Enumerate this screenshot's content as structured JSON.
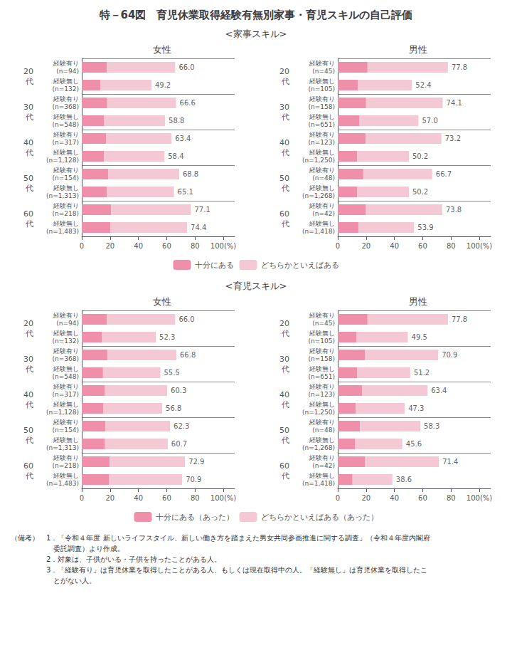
{
  "title": "特－64図　育児休業取得経験有無別家事・育児スキルの自己評価",
  "notes": [
    "（備考）　1．「令和４年度 新しいライフスタイル、新しい働き方を踏まえた男女共同参画推進に関する調査」（令和４年度内閣府",
    "　　　　　　委託調査）より作成。",
    "　　　　　2．対象は、子供がいる・子供を持ったことがある人。",
    "　　　　　3．「経験有り」は育児休業を取得したことがある人、もしくは現在取得中の人。「経験無し」は育児休業を取得したこ",
    "　　　　　　とがない人。"
  ],
  "chart_data": [
    {
      "type": "bar",
      "section": "<家事スキル>",
      "title": "女性",
      "orientation": "horizontal",
      "stacked": true,
      "grid": false,
      "legend": "bottom",
      "data_labels": true,
      "group_labels": [
        "20\n代",
        "30\n代",
        "40\n代",
        "50\n代",
        "60\n代"
      ],
      "categories": [
        "経験有り\n(n=94)",
        "経験無し\n(n=132)",
        "経験有り\n(n=368)",
        "経験無し\n(n=548)",
        "経験有り\n(n=317)",
        "経験無し\n(n=1,128)",
        "経験有り\n(n=154)",
        "経験無し\n(n=1,313)",
        "経験有り\n(n=218)",
        "経験無し\n(n=1,483)"
      ],
      "series": [
        {
          "name": "十分にある",
          "color": "#ef8faa",
          "values": [
            17.82,
            13.284,
            17.982,
            15.876,
            17.118,
            15.768,
            18.576,
            17.577,
            20.817,
            20.088
          ]
        },
        {
          "name": "どちらかといえばある",
          "color": "#f5c8d5",
          "values": [
            48.18,
            35.916,
            48.618,
            42.924,
            46.282,
            42.632,
            50.224,
            47.523,
            56.283,
            54.312
          ]
        }
      ],
      "totals": [
        66.0,
        49.2,
        66.6,
        58.8,
        63.4,
        58.4,
        68.8,
        65.1,
        77.1,
        74.4
      ],
      "total_labels": [
        "66.0",
        "49.2",
        "66.6",
        "58.8",
        "63.4",
        "58.4",
        "68.8",
        "65.1",
        "77.1",
        "74.4"
      ],
      "xlim": [
        0,
        108
      ],
      "xticks": [
        0,
        20,
        40,
        60,
        80,
        {
          "value": 100,
          "label": "100(%)"
        }
      ]
    },
    {
      "type": "bar",
      "section": "<家事スキル>",
      "title": "男性",
      "orientation": "horizontal",
      "stacked": true,
      "grid": false,
      "legend": "bottom",
      "data_labels": true,
      "group_labels": [
        "20\n代",
        "30\n代",
        "40\n代",
        "50\n代",
        "60\n代"
      ],
      "categories": [
        "経験有り\n(n=45)",
        "経験無し\n(n=105)",
        "経験有り\n(n=158)",
        "経験無し\n(n=651)",
        "経験有り\n(n=123)",
        "経験無し\n(n=1,250)",
        "経験有り\n(n=48)",
        "経験無し\n(n=1,268)",
        "経験有り\n(n=42)",
        "経験無し\n(n=1,418)"
      ],
      "series": [
        {
          "name": "十分にある",
          "color": "#ef8faa",
          "values": [
            21.006,
            14.148,
            20.007,
            15.39,
            19.764,
            13.554,
            18.009,
            13.554,
            19.926,
            14.553
          ]
        },
        {
          "name": "どちらかといえばある",
          "color": "#f5c8d5",
          "values": [
            56.794,
            38.252,
            54.093,
            41.61,
            53.436,
            36.646,
            48.691,
            36.646,
            53.874,
            39.347
          ]
        }
      ],
      "totals": [
        77.8,
        52.4,
        74.1,
        57.0,
        73.2,
        50.2,
        66.7,
        50.2,
        73.8,
        53.9
      ],
      "total_labels": [
        "77.8",
        "52.4",
        "74.1",
        "57.0",
        "73.2",
        "50.2",
        "66.7",
        "50.2",
        "73.8",
        "53.9"
      ],
      "xlim": [
        0,
        108
      ],
      "xticks": [
        0,
        20,
        40,
        60,
        80,
        {
          "value": 100,
          "label": "100(%)"
        }
      ]
    },
    {
      "type": "bar",
      "section": "<育児スキル>",
      "title": "女性",
      "orientation": "horizontal",
      "stacked": true,
      "grid": false,
      "legend": "bottom",
      "data_labels": true,
      "group_labels": [
        "20\n代",
        "30\n代",
        "40\n代",
        "50\n代",
        "60\n代"
      ],
      "categories": [
        "経験有り\n(n=94)",
        "経験無し\n(n=132)",
        "経験有り\n(n=368)",
        "経験無し\n(n=548)",
        "経験有り\n(n=317)",
        "経験無し\n(n=1,128)",
        "経験有り\n(n=154)",
        "経験無し\n(n=1,313)",
        "経験有り\n(n=218)",
        "経験無し\n(n=1,483)"
      ],
      "series": [
        {
          "name": "十分にある（あった）",
          "color": "#ef8faa",
          "values": [
            17.82,
            14.121,
            18.036,
            14.985,
            16.281,
            15.336,
            16.821,
            16.389,
            19.683,
            19.143
          ]
        },
        {
          "name": "どちらかといえばある（あった）",
          "color": "#f5c8d5",
          "values": [
            48.18,
            38.179,
            48.764,
            40.515,
            44.019,
            41.464,
            45.479,
            44.311,
            53.217,
            51.757
          ]
        }
      ],
      "totals": [
        66.0,
        52.3,
        66.8,
        55.5,
        60.3,
        56.8,
        62.3,
        60.7,
        72.9,
        70.9
      ],
      "total_labels": [
        "66.0",
        "52.3",
        "66.8",
        "55.5",
        "60.3",
        "56.8",
        "62.3",
        "60.7",
        "72.9",
        "70.9"
      ],
      "xlim": [
        0,
        108
      ],
      "xticks": [
        0,
        20,
        40,
        60,
        80,
        {
          "value": 100,
          "label": "100(%)"
        }
      ]
    },
    {
      "type": "bar",
      "section": "<育児スキル>",
      "title": "男性",
      "orientation": "horizontal",
      "stacked": true,
      "grid": false,
      "legend": "bottom",
      "data_labels": true,
      "group_labels": [
        "20\n代",
        "30\n代",
        "40\n代",
        "50\n代",
        "60\n代"
      ],
      "categories": [
        "経験有り\n(n=45)",
        "経験無し\n(n=105)",
        "経験有り\n(n=158)",
        "経験無し\n(n=651)",
        "経験有り\n(n=123)",
        "経験無し\n(n=1,250)",
        "経験有り\n(n=48)",
        "経験無し\n(n=1,268)",
        "経験有り\n(n=42)",
        "経験無し\n(n=1,418)"
      ],
      "series": [
        {
          "name": "十分にある（あった）",
          "color": "#ef8faa",
          "values": [
            21.006,
            13.365,
            19.143,
            13.824,
            17.118,
            12.771,
            15.741,
            12.312,
            19.278,
            10.422
          ]
        },
        {
          "name": "どちらかといえばある（あった）",
          "color": "#f5c8d5",
          "values": [
            56.794,
            36.135,
            51.757,
            37.376,
            46.282,
            34.529,
            42.559,
            33.288,
            52.122,
            28.178
          ]
        }
      ],
      "totals": [
        77.8,
        49.5,
        70.9,
        51.2,
        63.4,
        47.3,
        58.3,
        45.6,
        71.4,
        38.6
      ],
      "total_labels": [
        "77.8",
        "49.5",
        "70.9",
        "51.2",
        "63.4",
        "47.3",
        "58.3",
        "45.6",
        "71.4",
        "38.6"
      ],
      "xlim": [
        0,
        108
      ],
      "xticks": [
        0,
        20,
        40,
        60,
        80,
        {
          "value": 100,
          "label": "100(%)"
        }
      ]
    }
  ]
}
